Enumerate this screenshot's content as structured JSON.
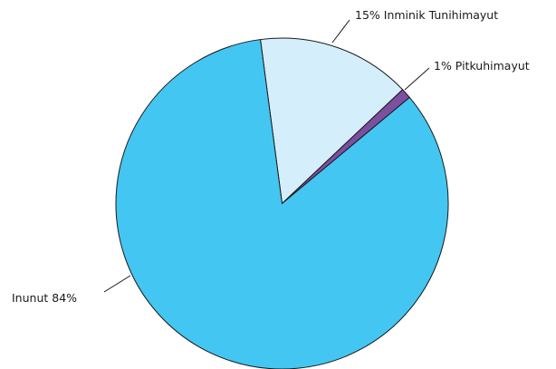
{
  "chart_data": {
    "type": "pie",
    "title": "",
    "slices": [
      {
        "label": "Inunut",
        "value": 84,
        "display": "Inunut  84%",
        "color": "#44c6f2"
      },
      {
        "label": "Inminik Tunihimayut",
        "value": 15,
        "display": "15% Inminik Tunihimayut",
        "color": "#d4eefb"
      },
      {
        "label": "Pitkuhimayut",
        "value": 1,
        "display": "1% Pitkuhimayut",
        "color": "#7d4fa0"
      }
    ],
    "legend": "none",
    "label_placement": "outside-with-leader-lines"
  }
}
